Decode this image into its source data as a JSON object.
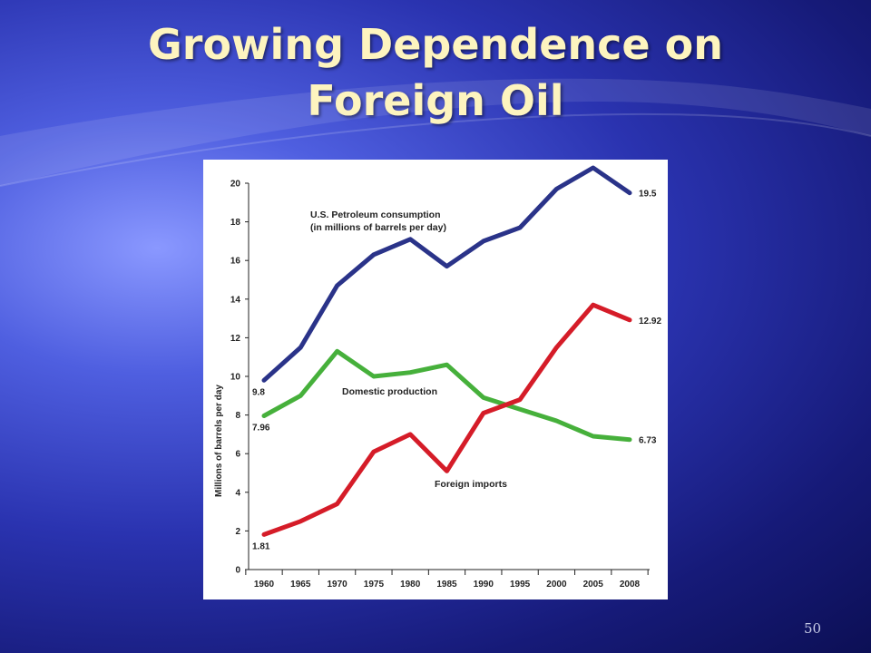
{
  "slide": {
    "title_line1": "Growing Dependence on",
    "title_line2": "Foreign Oil",
    "slide_number": "50"
  },
  "chart_data": {
    "type": "line",
    "ylabel": "Millions of barrels per day",
    "xlabel": "",
    "ylim": [
      0,
      20
    ],
    "yticks": [
      0,
      2,
      4,
      6,
      8,
      10,
      12,
      14,
      16,
      18,
      20
    ],
    "categories": [
      "1960",
      "1965",
      "1970",
      "1975",
      "1980",
      "1985",
      "1990",
      "1995",
      "2000",
      "2005",
      "2008"
    ],
    "grid": false,
    "series": [
      {
        "name": "U.S. Petroleum consumption",
        "name_line2": "(in millions of barrels per day)",
        "color": "#2a3389",
        "values": [
          9.8,
          11.5,
          14.7,
          16.3,
          17.1,
          15.7,
          17.0,
          17.7,
          19.7,
          20.8,
          19.5
        ],
        "start_label": "9.8",
        "end_label": "19.5"
      },
      {
        "name": "Domestic production",
        "color": "#46b03b",
        "values": [
          7.96,
          9.0,
          11.3,
          10.0,
          10.2,
          10.6,
          8.9,
          8.3,
          7.7,
          6.9,
          6.73
        ],
        "start_label": "7.96",
        "end_label": "6.73"
      },
      {
        "name": "Foreign imports",
        "color": "#d51c28",
        "values": [
          1.81,
          2.5,
          3.4,
          6.1,
          7.0,
          5.1,
          8.1,
          8.8,
          11.5,
          13.7,
          12.92
        ],
        "start_label": "1.81",
        "end_label": "12.92"
      }
    ]
  }
}
